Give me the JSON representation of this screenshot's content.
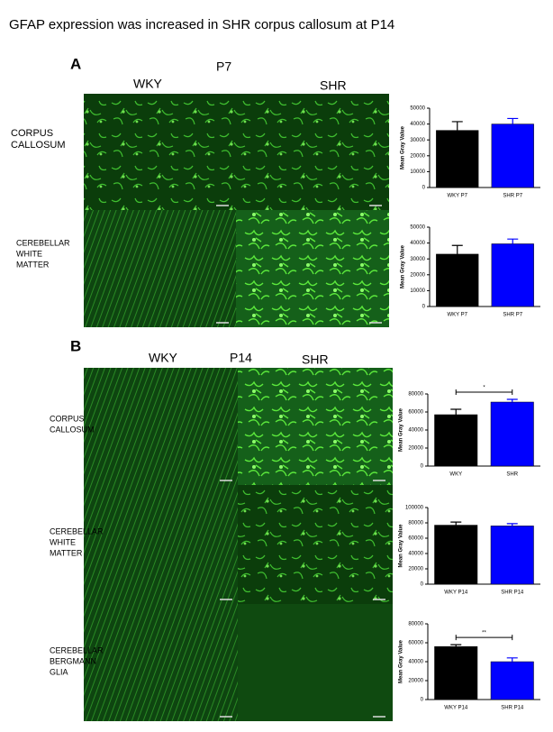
{
  "title": "GFAP expression was increased in SHR corpus callosum at P14",
  "panels": [
    {
      "label": "A",
      "age": "P7",
      "columns": [
        "WKY",
        "SHR"
      ],
      "rows": [
        [
          "CORPUS",
          "CALLOSUM"
        ],
        [
          "CEREBELLAR",
          "WHITE",
          "MATTER"
        ]
      ]
    },
    {
      "label": "B",
      "age": "P14",
      "columns": [
        "WKY",
        "SHR"
      ],
      "rows": [
        [
          "CORPUS",
          "CALLOSUM"
        ],
        [
          "CEREBELLAR",
          "WHITE",
          "MATTER"
        ],
        [
          "CEREBELLAR",
          "BERGMANN",
          "GLIA"
        ]
      ]
    }
  ],
  "chart_data": [
    {
      "type": "bar",
      "y_label": "Mean Gray Value",
      "categories": [
        "WKY P7",
        "SHR P7"
      ],
      "values": [
        36000,
        40000
      ],
      "errors": [
        5500,
        3500
      ],
      "colors": [
        "#000000",
        "#0000ff"
      ],
      "ylim": [
        0,
        50000
      ],
      "yticks": [
        0,
        10000,
        20000,
        30000,
        40000,
        50000
      ]
    },
    {
      "type": "bar",
      "y_label": "Mean Gray Value",
      "categories": [
        "WKY P7",
        "SHR P7"
      ],
      "values": [
        33000,
        39500
      ],
      "errors": [
        5500,
        3000
      ],
      "colors": [
        "#000000",
        "#0000ff"
      ],
      "ylim": [
        0,
        50000
      ],
      "yticks": [
        0,
        10000,
        20000,
        30000,
        40000,
        50000
      ]
    },
    {
      "type": "bar",
      "y_label": "Mean Gray Value",
      "categories": [
        "WKY",
        "SHR"
      ],
      "values": [
        57000,
        71000
      ],
      "errors": [
        6000,
        3000
      ],
      "colors": [
        "#000000",
        "#0000ff"
      ],
      "ylim": [
        0,
        80000
      ],
      "yticks": [
        0,
        20000,
        40000,
        60000,
        80000
      ],
      "annotation": "*"
    },
    {
      "type": "bar",
      "y_label": "Mean Gray Value",
      "categories": [
        "WKY P14",
        "SHR P14"
      ],
      "values": [
        77000,
        76000
      ],
      "errors": [
        4000,
        3000
      ],
      "colors": [
        "#000000",
        "#0000ff"
      ],
      "ylim": [
        0,
        100000
      ],
      "yticks": [
        0,
        20000,
        40000,
        60000,
        80000,
        100000
      ]
    },
    {
      "type": "bar",
      "y_label": "Mean Gray Value",
      "categories": [
        "WKY P14",
        "SHR P14"
      ],
      "values": [
        56000,
        40000
      ],
      "errors": [
        2000,
        4000
      ],
      "colors": [
        "#000000",
        "#0000ff"
      ],
      "ylim": [
        0,
        80000
      ],
      "yticks": [
        0,
        20000,
        40000,
        60000,
        80000
      ],
      "annotation": "**"
    }
  ]
}
